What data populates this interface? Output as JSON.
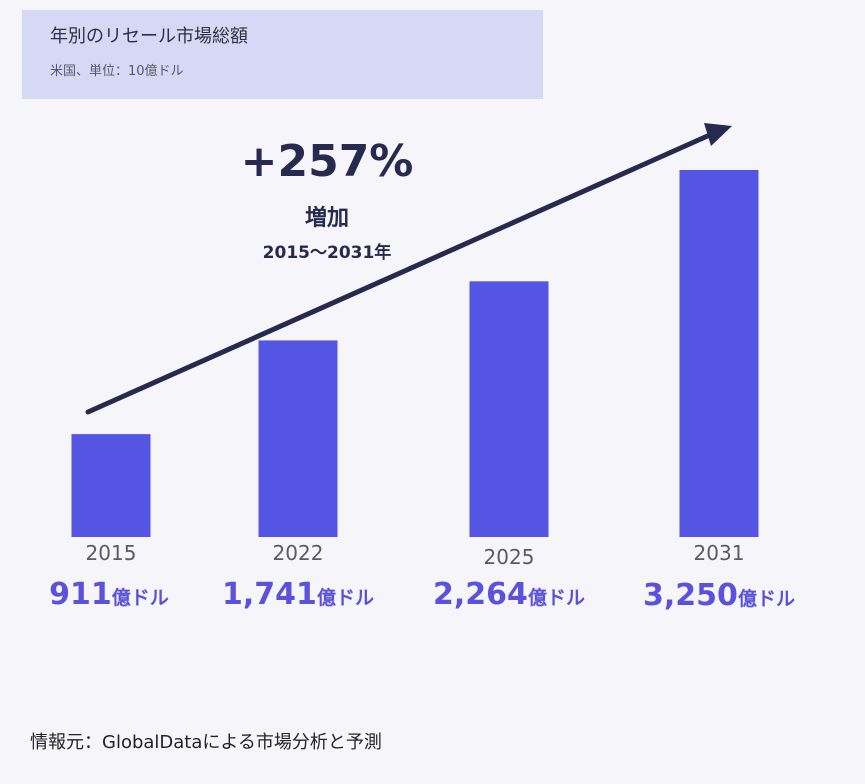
{
  "header": {
    "title": "年別のリセール市場総額",
    "subtitle": "米国、単位：10億ドル"
  },
  "annotation": {
    "percent": "+257%",
    "increase": "増加",
    "range": "2015〜2031年"
  },
  "chart_data": {
    "type": "bar",
    "categories": [
      "2015",
      "2022",
      "2025",
      "2031"
    ],
    "values": [
      91.1,
      174.1,
      226.4,
      325.0
    ],
    "value_labels": [
      {
        "num": "911",
        "unit": "億ドル"
      },
      {
        "num": "1,741",
        "unit": "億ドル"
      },
      {
        "num": "2,264",
        "unit": "億ドル"
      },
      {
        "num": "3,250",
        "unit": "億ドル"
      }
    ],
    "title": "年別のリセール市場総額",
    "subtitle": "米国、単位：10億ドル",
    "bar_color": "#5455e2",
    "arrow_color": "#262a4f",
    "grid": false
  },
  "footer": {
    "source": "情報元：GlobalDataによる市場分析と予測"
  }
}
